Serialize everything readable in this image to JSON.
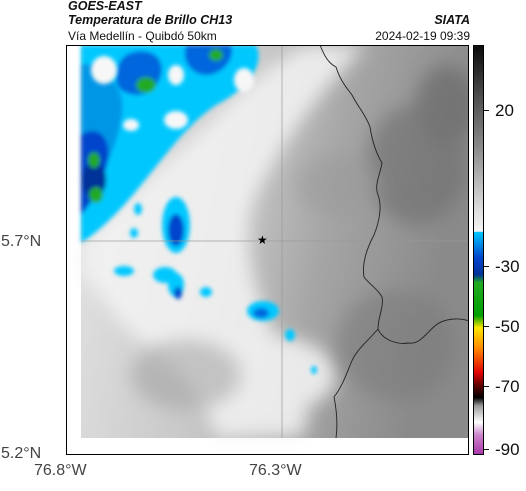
{
  "header": {
    "satellite": "GOES-EAST",
    "product": "Temperatura de Brillo CH13",
    "route": "Vía Medellín - Quibdó 50km",
    "brand": "SIATA",
    "timestamp": "2024-02-19 09:39"
  },
  "axes": {
    "lat_labels": [
      "5.7°N",
      "5.2°N"
    ],
    "lon_labels": [
      "76.8°W",
      "76.3°W"
    ]
  },
  "colorbar": {
    "ticks": [
      "20",
      "-30",
      "-50",
      "-70",
      "-90"
    ],
    "colors": {
      "warm_gray": "#8a8a8a",
      "light_gray": "#f2f2f2",
      "cyan": "#00c8ff",
      "blue": "#0044cc",
      "green": "#22aa22",
      "yellow": "#ffe600",
      "red": "#e00000",
      "black": "#000000",
      "magenta": "#cc44cc"
    }
  },
  "map": {
    "marker": "star-icon",
    "grid": true
  }
}
